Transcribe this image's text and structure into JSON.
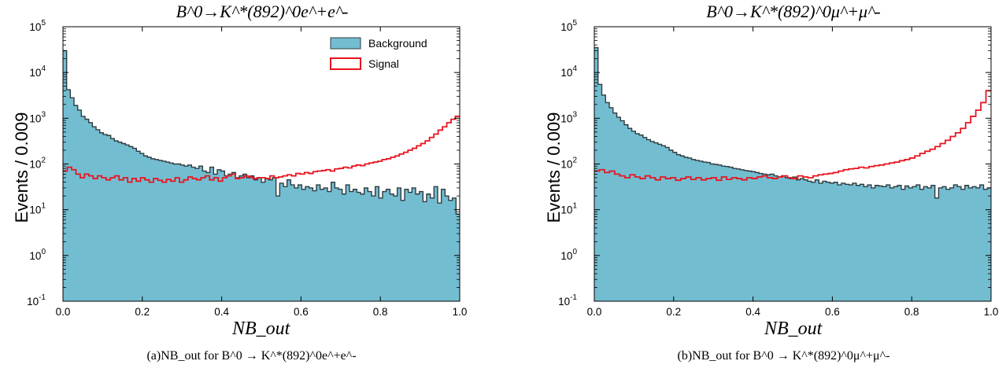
{
  "chart_data": [
    {
      "type": "histogram",
      "title": "B^0→K^*(892)^0e^+e^-",
      "xlabel": "NB_out",
      "ylabel": "Events  /  0.009",
      "caption": "(a)NB_out for  B^0 → K^*(892)^0e^+e^-",
      "xlim": [
        0.0,
        1.0
      ],
      "ylim": [
        0.1,
        100000
      ],
      "yscale": "log",
      "bin_width": 0.009,
      "x_ticks": [
        "0.0",
        "0.2",
        "0.4",
        "0.6",
        "0.8",
        "1.0"
      ],
      "y_ticks": [
        "10^-1",
        "10^0",
        "10^1",
        "10^2",
        "10^3",
        "10^4",
        "10^5"
      ],
      "legend": {
        "position": "top-right",
        "entries": [
          "Background",
          "Signal"
        ]
      },
      "colors": {
        "background_fill": "#73bdd1",
        "background_edge": "#2f3b40",
        "signal": "#e8141e"
      },
      "series": [
        {
          "name": "Background",
          "style": "filled",
          "values": [
            30000,
            4200,
            2800,
            1900,
            1500,
            1100,
            950,
            800,
            650,
            560,
            480,
            440,
            420,
            360,
            320,
            300,
            280,
            260,
            240,
            220,
            190,
            170,
            150,
            140,
            130,
            125,
            120,
            115,
            110,
            105,
            100,
            100,
            95,
            90,
            95,
            85,
            80,
            90,
            70,
            65,
            85,
            60,
            75,
            70,
            55,
            60,
            65,
            50,
            55,
            60,
            50,
            55,
            45,
            50,
            40,
            48,
            45,
            50,
            20,
            38,
            32,
            45,
            35,
            30,
            35,
            28,
            32,
            30,
            26,
            35,
            28,
            30,
            25,
            40,
            30,
            28,
            22,
            35,
            25,
            28,
            24,
            22,
            30,
            25,
            20,
            32,
            18,
            25,
            28,
            22,
            20,
            30,
            16,
            28,
            24,
            30,
            22,
            25,
            15,
            22,
            18,
            32,
            14,
            28,
            20,
            16,
            18,
            8
          ]
        },
        {
          "name": "Signal",
          "style": "step",
          "values": [
            70,
            85,
            75,
            60,
            50,
            60,
            55,
            48,
            55,
            50,
            45,
            50,
            55,
            45,
            50,
            40,
            48,
            42,
            50,
            45,
            40,
            48,
            44,
            40,
            46,
            42,
            50,
            40,
            45,
            52,
            48,
            45,
            50,
            55,
            45,
            50,
            42,
            50,
            55,
            60,
            48,
            50,
            55,
            52,
            48,
            50,
            50,
            48,
            55,
            50,
            52,
            55,
            58,
            55,
            62,
            60,
            65,
            62,
            68,
            70,
            72,
            75,
            70,
            78,
            80,
            85,
            82,
            90,
            95,
            92,
            100,
            105,
            110,
            115,
            125,
            130,
            140,
            150,
            165,
            180,
            200,
            220,
            250,
            280,
            320,
            380,
            450,
            550,
            650,
            800,
            950,
            1100
          ]
        }
      ]
    },
    {
      "type": "histogram",
      "title": "B^0→K^*(892)^0μ^+μ^-",
      "xlabel": "NB_out",
      "ylabel": "Events  /  0.009",
      "caption": "(b)NB_out for  B^0 → K^*(892)^0μ^+μ^-",
      "xlim": [
        0.0,
        1.0
      ],
      "ylim": [
        0.1,
        100000
      ],
      "yscale": "log",
      "bin_width": 0.009,
      "x_ticks": [
        "0.0",
        "0.2",
        "0.4",
        "0.6",
        "0.8",
        "1.0"
      ],
      "y_ticks": [
        "10^-1",
        "10^0",
        "10^1",
        "10^2",
        "10^3",
        "10^4",
        "10^5"
      ],
      "colors": {
        "background_fill": "#73bdd1",
        "background_edge": "#2f3b40",
        "signal": "#e8141e"
      },
      "series": [
        {
          "name": "Background",
          "style": "filled",
          "values": [
            35000,
            5500,
            3200,
            2200,
            1700,
            1300,
            1050,
            880,
            720,
            600,
            520,
            460,
            430,
            380,
            340,
            310,
            290,
            270,
            250,
            230,
            200,
            180,
            160,
            150,
            140,
            135,
            125,
            120,
            115,
            110,
            108,
            100,
            98,
            95,
            90,
            88,
            85,
            80,
            78,
            75,
            72,
            70,
            68,
            65,
            62,
            60,
            58,
            60,
            55,
            52,
            55,
            50,
            48,
            52,
            45,
            48,
            45,
            42,
            40,
            45,
            38,
            42,
            40,
            38,
            40,
            35,
            38,
            36,
            35,
            38,
            34,
            36,
            32,
            35,
            30,
            34,
            33,
            32,
            35,
            30,
            32,
            34,
            28,
            33,
            30,
            32,
            35,
            28,
            32,
            30,
            34,
            18,
            30,
            32,
            28,
            30,
            35,
            32,
            28,
            34,
            30,
            32,
            30,
            35,
            28,
            30
          ]
        },
        {
          "name": "Signal",
          "style": "step",
          "values": [
            70,
            75,
            65,
            70,
            60,
            55,
            50,
            58,
            52,
            48,
            55,
            50,
            45,
            52,
            48,
            50,
            44,
            48,
            52,
            46,
            50,
            45,
            48,
            50,
            44,
            52,
            46,
            50,
            48,
            45,
            50,
            48,
            52,
            55,
            50,
            48,
            52,
            55,
            50,
            48,
            55,
            52,
            50,
            55,
            58,
            60,
            62,
            65,
            70,
            75,
            78,
            80,
            85,
            82,
            88,
            92,
            95,
            100,
            105,
            110,
            118,
            125,
            135,
            150,
            170,
            190,
            210,
            240,
            280,
            330,
            400,
            480,
            600,
            800,
            1100,
            1500,
            2200,
            4000
          ]
        }
      ]
    }
  ]
}
